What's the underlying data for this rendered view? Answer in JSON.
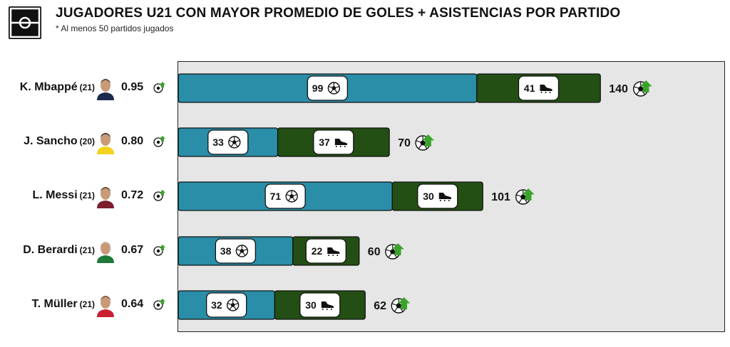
{
  "header": {
    "title": "JUGADORES U21 CON MAYOR PROMEDIO DE GOLES + ASISTENCIAS POR PARTIDO",
    "subtitle": "* Al menos 50 partidos jugados"
  },
  "colors": {
    "goals": "#2a8ea8",
    "assists": "#234f14",
    "background": "#e6e6e6",
    "arrow": "#3aa32a"
  },
  "icons": {
    "goals": "soccer-ball-icon",
    "assists": "boot-icon",
    "total": "ball-arrow-up-icon",
    "logo": "field-logo-icon"
  },
  "players": [
    {
      "name": "K. Mbappé",
      "age": "(21)",
      "avg": "0.95",
      "goals": "99",
      "assists": "41",
      "total": "140"
    },
    {
      "name": "J. Sancho",
      "age": "(20)",
      "avg": "0.80",
      "goals": "33",
      "assists": "37",
      "total": "70"
    },
    {
      "name": "L. Messi",
      "age": "(21)",
      "avg": "0.72",
      "goals": "71",
      "assists": "30",
      "total": "101"
    },
    {
      "name": "D. Berardi",
      "age": "(21)",
      "avg": "0.67",
      "goals": "38",
      "assists": "22",
      "total": "60"
    },
    {
      "name": "T. Müller",
      "age": "(21)",
      "avg": "0.64",
      "goals": "32",
      "assists": "30",
      "total": "62"
    }
  ],
  "chart_data": {
    "type": "bar",
    "orientation": "horizontal",
    "stacked": true,
    "title": "JUGADORES U21 CON MAYOR PROMEDIO DE GOLES + ASISTENCIAS POR PARTIDO",
    "subtitle": "* Al menos 50 partidos jugados",
    "categories": [
      "K. Mbappé",
      "J. Sancho",
      "L. Messi",
      "D. Berardi",
      "T. Müller"
    ],
    "series": [
      {
        "values": [
          99,
          33,
          71,
          38,
          32
        ]
      },
      {
        "values": [
          41,
          37,
          30,
          22,
          30
        ]
      }
    ],
    "totals": [
      140,
      70,
      101,
      60,
      62
    ],
    "averages": [
      0.95,
      0.8,
      0.72,
      0.67,
      0.64
    ],
    "xlim": [
      0,
      180
    ],
    "grid": false,
    "legend": "none"
  }
}
